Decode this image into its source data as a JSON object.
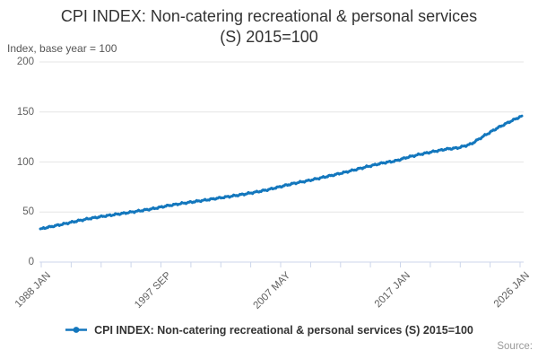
{
  "title": {
    "line1": "CPI INDEX: Non-catering recreational & personal services",
    "line2": "(S) 2015=100"
  },
  "subtitle": "Index, base year = 100",
  "source_label": "Source:",
  "legend": {
    "label": "CPI INDEX: Non-catering recreational & personal services (S) 2015=100",
    "marker": "line-with-dot"
  },
  "colors": {
    "line": "#1377bd",
    "grid": "#e6e6e6",
    "axis": "#ccd6eb",
    "tick_label": "#606060",
    "title": "#333333",
    "source": "#999999"
  },
  "chart_data": {
    "type": "line",
    "title": "CPI INDEX: Non-catering recreational & personal services (S) 2015=100",
    "ylabel": "Index, base year = 100",
    "ylim": [
      0,
      200
    ],
    "y_ticks": [
      0,
      50,
      100,
      150,
      200
    ],
    "x_tick_labels": [
      "1988 JAN",
      "1997 SEP",
      "2007 MAY",
      "2017 JAN",
      "2026 JAN"
    ],
    "minor_x_tick_count": 17,
    "labeled_tick_step": 4,
    "grid": "horizontal",
    "legend_position": "bottom-center",
    "frequency_note": "monthly series, January values listed per year",
    "series": [
      {
        "name": "CPI INDEX: Non-catering recreational & personal services (S) 2015=100",
        "color": "#1377bd",
        "x_years": [
          1988,
          1989,
          1990,
          1991,
          1992,
          1993,
          1994,
          1995,
          1996,
          1997,
          1998,
          1999,
          2000,
          2001,
          2002,
          2003,
          2004,
          2005,
          2006,
          2007,
          2008,
          2009,
          2010,
          2011,
          2012,
          2013,
          2014,
          2015,
          2016,
          2017,
          2018,
          2019,
          2020,
          2021,
          2022,
          2023,
          2024,
          2025,
          2026
        ],
        "values": [
          33.2,
          35.8,
          38.5,
          41.3,
          43.8,
          45.8,
          47.7,
          49.6,
          51.5,
          53.6,
          56.2,
          58.3,
          60.1,
          61.9,
          63.8,
          65.7,
          67.7,
          69.9,
          72.4,
          75.6,
          78.6,
          81.0,
          83.8,
          86.6,
          89.6,
          92.8,
          96.0,
          99.0,
          101.0,
          104.8,
          107.8,
          110.4,
          112.8,
          114.2,
          118.0,
          126.0,
          133.5,
          140.0,
          146.0
        ]
      }
    ]
  }
}
